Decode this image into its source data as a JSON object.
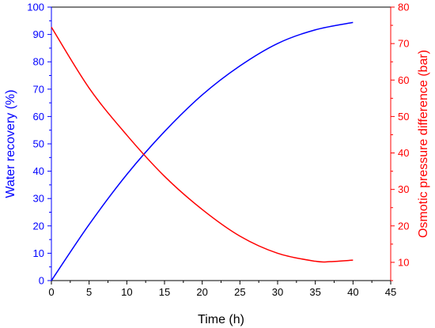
{
  "chart_data": {
    "type": "line",
    "title": "",
    "xlabel": "Time (h)",
    "ylabel_left": "Water recovery (%)",
    "ylabel_right": "Osmotic pressure difference (bar)",
    "xlim": [
      0,
      45
    ],
    "ylim_left": [
      0,
      100
    ],
    "ylim_right": [
      5,
      80
    ],
    "x_ticks": [
      "0",
      "5",
      "10",
      "15",
      "20",
      "25",
      "30",
      "35",
      "40",
      "45"
    ],
    "y_left_ticks": [
      "0",
      "10",
      "20",
      "30",
      "40",
      "50",
      "60",
      "70",
      "80",
      "90",
      "100"
    ],
    "y_right_ticks": [
      "10",
      "20",
      "30",
      "40",
      "50",
      "60",
      "70",
      "80"
    ],
    "grid": false,
    "legend": "none",
    "series": [
      {
        "axis": "left",
        "color": "#0000ff",
        "x": [
          0,
          5,
          10,
          15,
          20,
          25,
          30,
          35,
          40
        ],
        "y": [
          0,
          20.5,
          38.8,
          54.5,
          67.9,
          78.5,
          86.7,
          91.7,
          94.4
        ]
      },
      {
        "axis": "right",
        "color": "#ff0000",
        "x": [
          0,
          5,
          10,
          15,
          20,
          25,
          30,
          35,
          37,
          40
        ],
        "y": [
          74.5,
          57.8,
          44.9,
          33.6,
          24.5,
          17.2,
          12.5,
          10.3,
          10.2,
          10.6
        ]
      }
    ],
    "left_axis_color": "#0000ff",
    "right_axis_color": "#ff0000",
    "x_axis_color": "#000000"
  }
}
